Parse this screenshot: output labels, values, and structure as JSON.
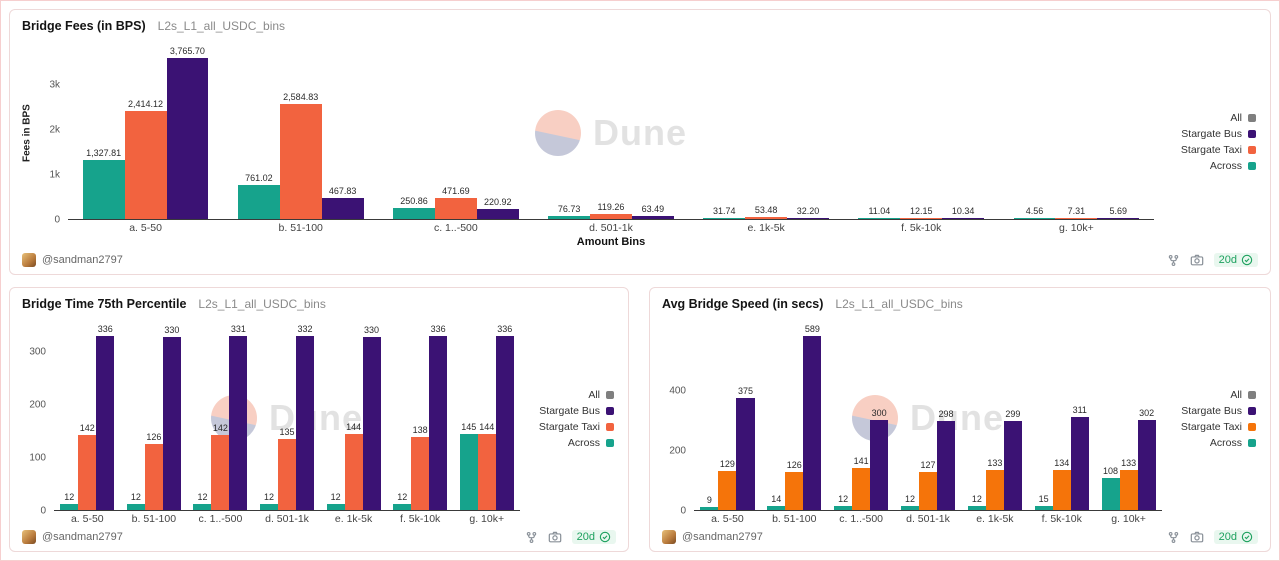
{
  "watermark": {
    "text": "Dune"
  },
  "card_footer": {
    "author": "@sandman2797",
    "refresh_age": "20d"
  },
  "chart_data": [
    {
      "type": "bar",
      "title": "Bridge Fees (in BPS)",
      "subtitle": "L2s_L1_all_USDC_bins",
      "xlabel": "Amount Bins",
      "ylabel": "Fees in BPS",
      "grid": false,
      "legend_position": "right",
      "ymax": 3850,
      "yticks": [
        {
          "label": "3k",
          "value": 3000
        },
        {
          "label": "2k",
          "value": 2000
        },
        {
          "label": "1k",
          "value": 1000
        },
        {
          "label": "0",
          "value": 0
        }
      ],
      "categories": [
        "a. 5-50",
        "b. 51-100",
        "c. 1..-500",
        "d. 501-1k",
        "e. 1k-5k",
        "f. 5k-10k",
        "g. 10k+"
      ],
      "series": [
        {
          "name": "Across",
          "color": "#16a38c",
          "values": [
            1327.81,
            761.02,
            250.86,
            76.73,
            31.74,
            11.04,
            4.56
          ],
          "labels": [
            "1,327.81",
            "761.02",
            "250.86",
            "76.73",
            "31.74",
            "11.04",
            "4.56"
          ]
        },
        {
          "name": "Stargate Taxi",
          "color": "#f2633f",
          "values": [
            2414.12,
            2584.83,
            471.69,
            119.26,
            53.48,
            12.15,
            7.31
          ],
          "labels": [
            "2,414.12",
            "2,584.83",
            "471.69",
            "119.26",
            "53.48",
            "12.15",
            "7.31"
          ]
        },
        {
          "name": "Stargate Bus",
          "color": "#3b1274",
          "values": [
            3765.7,
            467.83,
            220.92,
            63.49,
            32.2,
            10.34,
            5.69
          ],
          "labels": [
            "3,765.70",
            "467.83",
            "220.92",
            "63.49",
            "32.20",
            "10.34",
            "5.69"
          ]
        }
      ],
      "legend": [
        {
          "label": "All",
          "color": "#7f7f7f"
        },
        {
          "label": "Stargate Bus",
          "color": "#3b1274"
        },
        {
          "label": "Stargate Taxi",
          "color": "#f2633f"
        },
        {
          "label": "Across",
          "color": "#16a38c"
        }
      ]
    },
    {
      "type": "bar",
      "title": "Bridge Time 75th Percentile",
      "subtitle": "L2s_L1_all_USDC_bins",
      "xlabel": "",
      "ylabel": "",
      "grid": false,
      "legend_position": "right",
      "ymax": 352,
      "yticks": [
        {
          "label": "300",
          "value": 300
        },
        {
          "label": "200",
          "value": 200
        },
        {
          "label": "100",
          "value": 100
        },
        {
          "label": "0",
          "value": 0
        }
      ],
      "categories": [
        "a. 5-50",
        "b. 51-100",
        "c. 1..-500",
        "d. 501-1k",
        "e. 1k-5k",
        "f. 5k-10k",
        "g. 10k+"
      ],
      "series": [
        {
          "name": "Across",
          "color": "#16a38c",
          "values": [
            12,
            12,
            12,
            12,
            12,
            12,
            145
          ],
          "labels": [
            "12",
            "12",
            "12",
            "12",
            "12",
            "12",
            "145"
          ]
        },
        {
          "name": "Stargate Taxi",
          "color": "#f2633f",
          "values": [
            142,
            126,
            142,
            135,
            144,
            138,
            144
          ],
          "labels": [
            "142",
            "126",
            "142",
            "135",
            "144",
            "138",
            "144"
          ]
        },
        {
          "name": "Stargate Bus",
          "color": "#3b1274",
          "values": [
            336,
            330,
            331,
            332,
            330,
            336,
            336
          ],
          "labels": [
            "336",
            "330",
            "331",
            "332",
            "330",
            "336",
            "336"
          ]
        }
      ],
      "legend": [
        {
          "label": "All",
          "color": "#7f7f7f"
        },
        {
          "label": "Stargate Bus",
          "color": "#3b1274"
        },
        {
          "label": "Stargate Taxi",
          "color": "#f2633f"
        },
        {
          "label": "Across",
          "color": "#16a38c"
        }
      ]
    },
    {
      "type": "bar",
      "title": "Avg Bridge Speed (in secs)",
      "subtitle": "L2s_L1_all_USDC_bins",
      "xlabel": "",
      "ylabel": "",
      "grid": false,
      "legend_position": "right",
      "ymax": 618,
      "yticks": [
        {
          "label": "400",
          "value": 400
        },
        {
          "label": "200",
          "value": 200
        },
        {
          "label": "0",
          "value": 0
        }
      ],
      "categories": [
        "a. 5-50",
        "b. 51-100",
        "c. 1..-500",
        "d. 501-1k",
        "e. 1k-5k",
        "f. 5k-10k",
        "g. 10k+"
      ],
      "series": [
        {
          "name": "Across",
          "color": "#16a38c",
          "values": [
            9,
            14,
            12,
            12,
            12,
            15,
            108
          ],
          "labels": [
            "9",
            "14",
            "12",
            "12",
            "12",
            "15",
            "108"
          ]
        },
        {
          "name": "Stargate Taxi",
          "color": "#f5740a",
          "values": [
            129,
            126,
            141,
            127,
            133,
            134,
            133
          ],
          "labels": [
            "129",
            "126",
            "141",
            "127",
            "133",
            "134",
            "133"
          ]
        },
        {
          "name": "Stargate Bus",
          "color": "#3b1274",
          "values": [
            375,
            589,
            300,
            298,
            299,
            311,
            302
          ],
          "labels": [
            "375",
            "589",
            "300",
            "298",
            "299",
            "311",
            "302"
          ]
        }
      ],
      "legend": [
        {
          "label": "All",
          "color": "#7f7f7f"
        },
        {
          "label": "Stargate Bus",
          "color": "#3b1274"
        },
        {
          "label": "Stargate Taxi",
          "color": "#f5740a"
        },
        {
          "label": "Across",
          "color": "#16a38c"
        }
      ]
    }
  ]
}
